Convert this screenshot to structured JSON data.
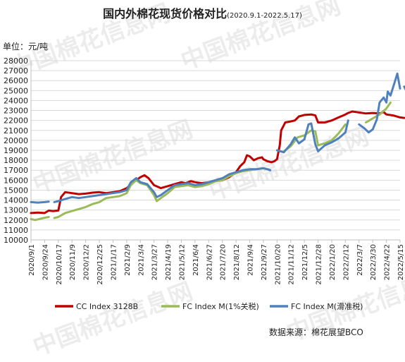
{
  "chart_data": {
    "type": "line",
    "title": "国内外棉花现货价格对比",
    "subtitle": "(2020.9.1-2022.5.17)",
    "ylabel": "单位：元/吨",
    "source": "数据来源：棉花展望BCO",
    "watermark": "中国棉花信息网",
    "ylim": [
      10000,
      28000
    ],
    "yticks": [
      10000,
      11000,
      12000,
      13000,
      14000,
      15000,
      16000,
      17000,
      18000,
      19000,
      20000,
      21000,
      22000,
      23000,
      24000,
      25000,
      26000,
      27000,
      28000
    ],
    "xticks": [
      "2020/9/1",
      "2020/9/24",
      "2020/10/17",
      "2020/11/9",
      "2020/12/2",
      "2020/12/25",
      "2021/1/17",
      "2021/2/9",
      "2021/3/4",
      "2021/3/27",
      "2021/4/19",
      "2021/5/12",
      "2021/6/4",
      "2021/6/27",
      "2021/7/20",
      "2021/8/12",
      "2021/9/4",
      "2021/9/27",
      "2021/10/20",
      "2021/11/12",
      "2021/12/5",
      "2021/12/28",
      "2022/1/20",
      "2022/2/12",
      "2022/3/7",
      "2022/3/30",
      "2022/4/22",
      "2022/5/15"
    ],
    "grid": true,
    "legend_position": "bottom",
    "series": [
      {
        "name": "CC Index 3128B",
        "color": "#c00000",
        "points": [
          [
            0,
            12700
          ],
          [
            0.5,
            12750
          ],
          [
            1,
            12700
          ],
          [
            1.3,
            12950
          ],
          [
            1.6,
            12900
          ],
          [
            2,
            12950
          ],
          [
            2.2,
            14300
          ],
          [
            2.5,
            14800
          ],
          [
            3,
            14700
          ],
          [
            3.5,
            14600
          ],
          [
            4,
            14650
          ],
          [
            4.5,
            14750
          ],
          [
            5,
            14800
          ],
          [
            5.5,
            14700
          ],
          [
            6,
            14800
          ],
          [
            6.5,
            14900
          ],
          [
            7,
            15200
          ],
          [
            7.5,
            15800
          ],
          [
            8,
            16300
          ],
          [
            8.3,
            16500
          ],
          [
            8.6,
            16200
          ],
          [
            9,
            15500
          ],
          [
            9.5,
            15200
          ],
          [
            10,
            15400
          ],
          [
            10.5,
            15600
          ],
          [
            11,
            15800
          ],
          [
            11.3,
            15700
          ],
          [
            11.7,
            15900
          ],
          [
            12,
            15800
          ],
          [
            12.5,
            15700
          ],
          [
            13,
            15800
          ],
          [
            13.5,
            15900
          ],
          [
            14,
            16000
          ],
          [
            14.5,
            16300
          ],
          [
            15,
            16800
          ],
          [
            15.3,
            17400
          ],
          [
            15.6,
            17800
          ],
          [
            15.8,
            18500
          ],
          [
            16,
            18400
          ],
          [
            16.3,
            18000
          ],
          [
            16.6,
            18200
          ],
          [
            16.9,
            18300
          ],
          [
            17,
            18100
          ],
          [
            17.3,
            17900
          ],
          [
            17.6,
            17800
          ],
          [
            17.8,
            17900
          ],
          [
            18,
            18100
          ],
          [
            18.2,
            19500
          ],
          [
            18.3,
            21000
          ],
          [
            18.6,
            21800
          ],
          [
            19,
            21900
          ],
          [
            19.3,
            22000
          ],
          [
            19.6,
            22400
          ],
          [
            20,
            22550
          ],
          [
            20.5,
            22600
          ],
          [
            20.8,
            22500
          ],
          [
            21,
            21800
          ],
          [
            21.5,
            21800
          ],
          [
            22,
            22000
          ],
          [
            22.5,
            22300
          ],
          [
            23,
            22600
          ],
          [
            23.2,
            22750
          ],
          [
            23.5,
            22900
          ],
          [
            24,
            22800
          ],
          [
            24.5,
            22700
          ],
          [
            25,
            22750
          ],
          [
            25.5,
            22700
          ],
          [
            25.8,
            22850
          ],
          [
            26,
            22600
          ],
          [
            26.5,
            22500
          ],
          [
            27,
            22300
          ],
          [
            27.3,
            22250
          ]
        ]
      },
      {
        "name": "FC Index M(1%关税)",
        "color": "#9bbb59",
        "points": [
          [
            0,
            12100
          ],
          [
            0.3,
            12000
          ],
          [
            0.6,
            12100
          ],
          [
            0.9,
            12200
          ],
          [
            1.3,
            12300
          ],
          [
            1.3,
            null
          ],
          [
            1.7,
            12200
          ],
          [
            2,
            12300
          ],
          [
            2.5,
            12700
          ],
          [
            3,
            12900
          ],
          [
            3.5,
            13100
          ],
          [
            4,
            13300
          ],
          [
            4.5,
            13600
          ],
          [
            5,
            13800
          ],
          [
            5.5,
            14200
          ],
          [
            6,
            14300
          ],
          [
            6.5,
            14400
          ],
          [
            7,
            14700
          ],
          [
            7.3,
            15500
          ],
          [
            7.7,
            16000
          ],
          [
            8,
            15700
          ],
          [
            8.5,
            15500
          ],
          [
            9,
            14500
          ],
          [
            9.2,
            13900
          ],
          [
            9.5,
            14200
          ],
          [
            10,
            14700
          ],
          [
            10.5,
            15300
          ],
          [
            11,
            15400
          ],
          [
            11.5,
            15500
          ],
          [
            12,
            15300
          ],
          [
            12.5,
            15400
          ],
          [
            13,
            15600
          ],
          [
            13.5,
            15900
          ],
          [
            14,
            16000
          ],
          [
            14.5,
            16400
          ],
          [
            15,
            16700
          ],
          [
            15.5,
            16900
          ],
          [
            16,
            17000
          ],
          [
            16.5,
            17100
          ],
          [
            17,
            17200
          ],
          [
            17.3,
            17100
          ],
          [
            17.5,
            17000
          ],
          [
            17.5,
            null
          ],
          [
            18.5,
            18900
          ],
          [
            19,
            19400
          ],
          [
            19.5,
            20300
          ],
          [
            20,
            20500
          ],
          [
            20.5,
            21000
          ],
          [
            20.8,
            20900
          ],
          [
            21,
            19500
          ],
          [
            21.5,
            19700
          ],
          [
            22,
            20000
          ],
          [
            22.5,
            20700
          ],
          [
            23,
            21600
          ],
          [
            23.2,
            null
          ],
          [
            24.5,
            21800
          ],
          [
            25,
            22200
          ],
          [
            25.5,
            22600
          ],
          [
            26,
            23200
          ],
          [
            26.3,
            23800
          ]
        ]
      },
      {
        "name": "FC Index M(滑准税)",
        "color": "#4f81bd",
        "points": [
          [
            0,
            13800
          ],
          [
            0.5,
            13750
          ],
          [
            1,
            13800
          ],
          [
            1.3,
            13850
          ],
          [
            1.3,
            null
          ],
          [
            1.7,
            13800
          ],
          [
            2,
            13900
          ],
          [
            2.5,
            14100
          ],
          [
            3,
            14300
          ],
          [
            3.5,
            14200
          ],
          [
            4,
            14300
          ],
          [
            4.5,
            14400
          ],
          [
            5,
            14500
          ],
          [
            5.5,
            14600
          ],
          [
            6,
            14700
          ],
          [
            6.5,
            14800
          ],
          [
            7,
            15000
          ],
          [
            7.3,
            15800
          ],
          [
            7.7,
            16200
          ],
          [
            8,
            15800
          ],
          [
            8.5,
            15600
          ],
          [
            9,
            14800
          ],
          [
            9.2,
            14300
          ],
          [
            9.5,
            14500
          ],
          [
            10,
            15000
          ],
          [
            10.5,
            15500
          ],
          [
            11,
            15600
          ],
          [
            11.5,
            15700
          ],
          [
            12,
            15500
          ],
          [
            12.5,
            15600
          ],
          [
            13,
            15800
          ],
          [
            13.5,
            16000
          ],
          [
            14,
            16200
          ],
          [
            14.5,
            16600
          ],
          [
            15,
            16800
          ],
          [
            15.5,
            17000
          ],
          [
            16,
            17100
          ],
          [
            16.5,
            17100
          ],
          [
            17,
            17200
          ],
          [
            17.3,
            17100
          ],
          [
            17.5,
            17000
          ],
          [
            17.5,
            null
          ],
          [
            18,
            19000
          ],
          [
            18.5,
            18800
          ],
          [
            19,
            19600
          ],
          [
            19.3,
            20300
          ],
          [
            19.6,
            19700
          ],
          [
            20,
            20100
          ],
          [
            20.3,
            21600
          ],
          [
            20.5,
            21700
          ],
          [
            20.8,
            19600
          ],
          [
            21,
            18900
          ],
          [
            21.5,
            19500
          ],
          [
            22,
            19800
          ],
          [
            22.5,
            20200
          ],
          [
            23,
            20800
          ],
          [
            23.2,
            22000
          ],
          [
            23.3,
            null
          ],
          [
            24,
            21600
          ],
          [
            24.4,
            21200
          ],
          [
            24.7,
            20800
          ],
          [
            25,
            21100
          ],
          [
            25.3,
            22100
          ],
          [
            25.5,
            23800
          ],
          [
            25.8,
            24300
          ],
          [
            26,
            23800
          ],
          [
            26.1,
            24900
          ],
          [
            26.3,
            24500
          ],
          [
            26.6,
            25800
          ],
          [
            26.8,
            26700
          ],
          [
            27,
            25200
          ],
          [
            27.1,
            null
          ],
          [
            27.3,
            25400
          ],
          [
            27.4,
            25100
          ]
        ]
      }
    ]
  }
}
